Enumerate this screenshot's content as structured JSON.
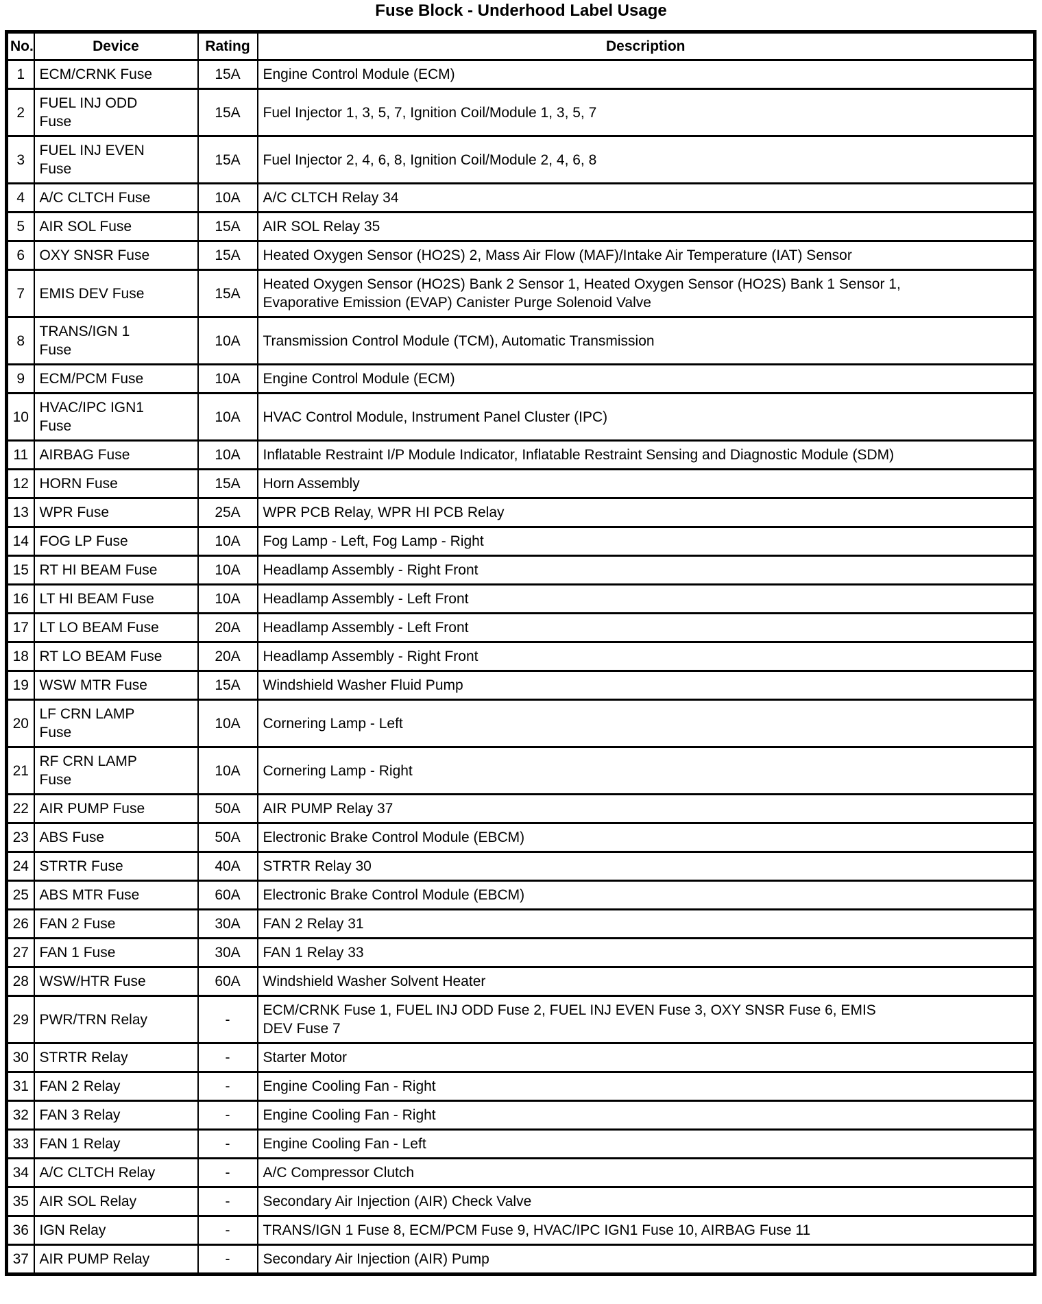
{
  "page": {
    "title": "Fuse Block - Underhood Label Usage"
  },
  "table": {
    "columns": [
      "No.",
      "Device",
      "Rating",
      "Description"
    ],
    "rows": [
      {
        "no": "1",
        "device": "ECM/CRNK Fuse",
        "rating": "15A",
        "description": "Engine Control Module (ECM)"
      },
      {
        "no": "2",
        "device": "FUEL INJ ODD\nFuse",
        "rating": "15A",
        "description": "Fuel Injector 1, 3, 5, 7, Ignition Coil/Module 1, 3, 5, 7"
      },
      {
        "no": "3",
        "device": "FUEL INJ EVEN\nFuse",
        "rating": "15A",
        "description": "Fuel Injector 2, 4, 6, 8, Ignition Coil/Module 2, 4, 6, 8"
      },
      {
        "no": "4",
        "device": "A/C CLTCH Fuse",
        "rating": "10A",
        "description": "A/C CLTCH Relay 34"
      },
      {
        "no": "5",
        "device": "AIR SOL Fuse",
        "rating": "15A",
        "description": "AIR SOL Relay 35"
      },
      {
        "no": "6",
        "device": "OXY SNSR Fuse",
        "rating": "15A",
        "description": "Heated Oxygen Sensor (HO2S) 2, Mass Air Flow (MAF)/Intake Air Temperature (IAT) Sensor"
      },
      {
        "no": "7",
        "device": "EMIS DEV Fuse",
        "rating": "15A",
        "description": "Heated Oxygen Sensor (HO2S) Bank 2 Sensor 1, Heated Oxygen Sensor (HO2S) Bank 1 Sensor 1,\nEvaporative Emission (EVAP) Canister Purge Solenoid Valve"
      },
      {
        "no": "8",
        "device": "TRANS/IGN 1\nFuse",
        "rating": "10A",
        "description": "Transmission Control Module (TCM), Automatic Transmission"
      },
      {
        "no": "9",
        "device": "ECM/PCM Fuse",
        "rating": "10A",
        "description": "Engine Control Module (ECM)"
      },
      {
        "no": "10",
        "device": "HVAC/IPC IGN1\nFuse",
        "rating": "10A",
        "description": "HVAC Control Module, Instrument Panel Cluster (IPC)"
      },
      {
        "no": "11",
        "device": "AIRBAG Fuse",
        "rating": "10A",
        "description": "Inflatable Restraint I/P Module Indicator, Inflatable Restraint Sensing and Diagnostic Module (SDM)"
      },
      {
        "no": "12",
        "device": "HORN Fuse",
        "rating": "15A",
        "description": "Horn Assembly"
      },
      {
        "no": "13",
        "device": "WPR Fuse",
        "rating": "25A",
        "description": "WPR PCB Relay, WPR HI PCB Relay"
      },
      {
        "no": "14",
        "device": "FOG LP Fuse",
        "rating": "10A",
        "description": "Fog Lamp - Left, Fog Lamp - Right"
      },
      {
        "no": "15",
        "device": "RT HI BEAM Fuse",
        "rating": "10A",
        "description": "Headlamp Assembly - Right Front"
      },
      {
        "no": "16",
        "device": "LT HI BEAM Fuse",
        "rating": "10A",
        "description": "Headlamp Assembly - Left Front"
      },
      {
        "no": "17",
        "device": "LT LO BEAM Fuse",
        "rating": "20A",
        "description": "Headlamp Assembly - Left Front"
      },
      {
        "no": "18",
        "device": "RT LO BEAM Fuse",
        "rating": "20A",
        "description": "Headlamp Assembly - Right Front"
      },
      {
        "no": "19",
        "device": "WSW MTR Fuse",
        "rating": "15A",
        "description": "Windshield Washer Fluid Pump"
      },
      {
        "no": "20",
        "device": "LF CRN LAMP\nFuse",
        "rating": "10A",
        "description": "Cornering Lamp - Left"
      },
      {
        "no": "21",
        "device": "RF CRN LAMP\nFuse",
        "rating": "10A",
        "description": "Cornering Lamp - Right"
      },
      {
        "no": "22",
        "device": "AIR PUMP Fuse",
        "rating": "50A",
        "description": "AIR PUMP Relay 37"
      },
      {
        "no": "23",
        "device": "ABS Fuse",
        "rating": "50A",
        "description": "Electronic Brake Control Module (EBCM)"
      },
      {
        "no": "24",
        "device": "STRTR Fuse",
        "rating": "40A",
        "description": "STRTR Relay 30"
      },
      {
        "no": "25",
        "device": "ABS MTR Fuse",
        "rating": "60A",
        "description": "Electronic Brake Control Module (EBCM)"
      },
      {
        "no": "26",
        "device": "FAN 2 Fuse",
        "rating": "30A",
        "description": "FAN 2 Relay 31"
      },
      {
        "no": "27",
        "device": "FAN 1 Fuse",
        "rating": "30A",
        "description": "FAN 1 Relay 33"
      },
      {
        "no": "28",
        "device": "WSW/HTR Fuse",
        "rating": "60A",
        "description": "Windshield Washer Solvent Heater"
      },
      {
        "no": "29",
        "device": "PWR/TRN Relay",
        "rating": "-",
        "description": "ECM/CRNK Fuse 1, FUEL INJ ODD Fuse 2, FUEL INJ EVEN Fuse 3, OXY SNSR Fuse 6, EMIS\nDEV Fuse 7"
      },
      {
        "no": "30",
        "device": "STRTR Relay",
        "rating": "-",
        "description": "Starter Motor"
      },
      {
        "no": "31",
        "device": "FAN 2 Relay",
        "rating": "-",
        "description": "Engine Cooling Fan - Right"
      },
      {
        "no": "32",
        "device": "FAN 3 Relay",
        "rating": "-",
        "description": "Engine Cooling Fan - Right"
      },
      {
        "no": "33",
        "device": "FAN 1 Relay",
        "rating": "-",
        "description": "Engine Cooling Fan - Left"
      },
      {
        "no": "34",
        "device": "A/C CLTCH Relay",
        "rating": "-",
        "description": "A/C Compressor Clutch"
      },
      {
        "no": "35",
        "device": "AIR SOL Relay",
        "rating": "-",
        "description": "Secondary Air Injection (AIR) Check Valve"
      },
      {
        "no": "36",
        "device": "IGN Relay",
        "rating": "-",
        "description": "TRANS/IGN 1 Fuse 8, ECM/PCM Fuse 9, HVAC/IPC IGN1 Fuse 10, AIRBAG Fuse 11"
      },
      {
        "no": "37",
        "device": "AIR PUMP Relay",
        "rating": "-",
        "description": "Secondary Air Injection (AIR) Pump"
      }
    ]
  }
}
